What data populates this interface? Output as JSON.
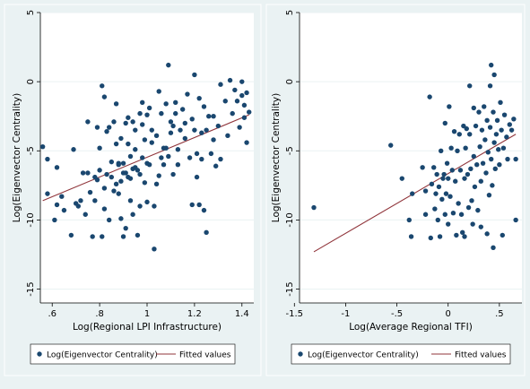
{
  "chart_data": [
    {
      "type": "scatter",
      "title": "",
      "xlabel": "Log(Regional LPI Infrastructure)",
      "ylabel": "Log(Eigenvector Centrality)",
      "xlim": [
        0.55,
        1.45
      ],
      "ylim": [
        -16,
        5
      ],
      "x_ticks": [
        0.6,
        0.8,
        1.0,
        1.2,
        1.4
      ],
      "x_tick_labels": [
        ".6",
        ".8",
        "1",
        "1.2",
        "1.4"
      ],
      "y_ticks": [
        5,
        0,
        -5,
        -10,
        -15
      ],
      "y_tick_labels": [
        "5",
        "0",
        "-5",
        "-10",
        "-15"
      ],
      "grid": true,
      "legend_position": "bottom",
      "colors": {
        "points": "#1a476f",
        "fit": "#90353b"
      },
      "series": [
        {
          "name": "Log(Eigenvector Centrality)",
          "kind": "scatter",
          "points": [
            [
              0.56,
              -4.7
            ],
            [
              0.58,
              -5.6
            ],
            [
              0.58,
              -8.1
            ],
            [
              0.61,
              -10.0
            ],
            [
              0.62,
              -6.2
            ],
            [
              0.62,
              -8.9
            ],
            [
              0.64,
              -8.3
            ],
            [
              0.65,
              -9.3
            ],
            [
              0.68,
              -11.1
            ],
            [
              0.69,
              -4.9
            ],
            [
              0.7,
              -8.8
            ],
            [
              0.71,
              -9.0
            ],
            [
              0.72,
              -8.6
            ],
            [
              0.73,
              -6.6
            ],
            [
              0.74,
              -9.6
            ],
            [
              0.75,
              -2.9
            ],
            [
              0.75,
              -6.6
            ],
            [
              0.76,
              -8.0
            ],
            [
              0.77,
              -11.2
            ],
            [
              0.78,
              -6.9
            ],
            [
              0.78,
              -8.6
            ],
            [
              0.79,
              -3.3
            ],
            [
              0.79,
              -7.1
            ],
            [
              0.8,
              -4.8
            ],
            [
              0.8,
              -6.4
            ],
            [
              0.81,
              -0.3
            ],
            [
              0.81,
              -11.2
            ],
            [
              0.82,
              -1.1
            ],
            [
              0.82,
              -7.7
            ],
            [
              0.82,
              -9.2
            ],
            [
              0.83,
              -3.6
            ],
            [
              0.83,
              -6.7
            ],
            [
              0.84,
              -10.0
            ],
            [
              0.84,
              -3.3
            ],
            [
              0.85,
              -5.8
            ],
            [
              0.85,
              -6.9
            ],
            [
              0.86,
              -2.9
            ],
            [
              0.86,
              -7.9
            ],
            [
              0.87,
              -1.6
            ],
            [
              0.87,
              -4.5
            ],
            [
              0.87,
              -7.4
            ],
            [
              0.88,
              -6.0
            ],
            [
              0.88,
              -5.9
            ],
            [
              0.88,
              -8.1
            ],
            [
              0.89,
              -4.1
            ],
            [
              0.89,
              -7.2
            ],
            [
              0.89,
              -9.9
            ],
            [
              0.9,
              -11.2
            ],
            [
              0.9,
              -5.9
            ],
            [
              0.9,
              -6.6
            ],
            [
              0.91,
              -3.0
            ],
            [
              0.91,
              -6.6
            ],
            [
              0.91,
              -10.6
            ],
            [
              0.92,
              -2.6
            ],
            [
              0.92,
              -4.5
            ],
            [
              0.92,
              -6.9
            ],
            [
              0.93,
              -5.4
            ],
            [
              0.93,
              -8.6
            ],
            [
              0.93,
              -7.0
            ],
            [
              0.94,
              -2.9
            ],
            [
              0.94,
              -6.3
            ],
            [
              0.94,
              -9.6
            ],
            [
              0.95,
              -3.5
            ],
            [
              0.95,
              -6.2
            ],
            [
              0.95,
              -4.9
            ],
            [
              0.96,
              -11.1
            ],
            [
              0.96,
              -6.4
            ],
            [
              0.97,
              -2.3
            ],
            [
              0.97,
              -6.7
            ],
            [
              0.97,
              -9.0
            ],
            [
              0.98,
              -3.1
            ],
            [
              0.98,
              -5.5
            ],
            [
              0.98,
              -1.5
            ],
            [
              0.99,
              -4.2
            ],
            [
              0.99,
              -7.3
            ],
            [
              1.0,
              -2.4
            ],
            [
              1.0,
              -5.9
            ],
            [
              1.0,
              -8.7
            ],
            [
              1.01,
              -1.9
            ],
            [
              1.01,
              -6.0
            ],
            [
              1.02,
              -3.5
            ],
            [
              1.02,
              -4.4
            ],
            [
              1.03,
              -12.1
            ],
            [
              1.03,
              -9.0
            ],
            [
              1.04,
              -7.4
            ],
            [
              1.04,
              -3.9
            ],
            [
              1.05,
              -0.7
            ],
            [
              1.05,
              -6.8
            ],
            [
              1.06,
              -5.5
            ],
            [
              1.06,
              -2.3
            ],
            [
              1.07,
              -4.8
            ],
            [
              1.07,
              -6.0
            ],
            [
              1.08,
              -1.6
            ],
            [
              1.08,
              -4.8
            ],
            [
              1.09,
              1.2
            ],
            [
              1.09,
              -5.4
            ],
            [
              1.1,
              -2.9
            ],
            [
              1.1,
              -3.7
            ],
            [
              1.11,
              -6.7
            ],
            [
              1.11,
              -3.2
            ],
            [
              1.12,
              -2.3
            ],
            [
              1.12,
              -1.5
            ],
            [
              1.13,
              -4.9
            ],
            [
              1.13,
              -6.0
            ],
            [
              1.14,
              -3.5
            ],
            [
              1.15,
              -2.0
            ],
            [
              1.16,
              -3.0
            ],
            [
              1.16,
              -4.1
            ],
            [
              1.17,
              -0.9
            ],
            [
              1.18,
              -5.5
            ],
            [
              1.19,
              -2.7
            ],
            [
              1.19,
              -8.9
            ],
            [
              1.2,
              0.5
            ],
            [
              1.2,
              -3.5
            ],
            [
              1.21,
              -5.2
            ],
            [
              1.21,
              -6.9
            ],
            [
              1.22,
              -8.9
            ],
            [
              1.22,
              -1.2
            ],
            [
              1.23,
              -3.7
            ],
            [
              1.23,
              -5.6
            ],
            [
              1.24,
              -9.3
            ],
            [
              1.24,
              -1.8
            ],
            [
              1.25,
              -3.5
            ],
            [
              1.25,
              -10.9
            ],
            [
              1.26,
              -2.5
            ],
            [
              1.27,
              -5.2
            ],
            [
              1.28,
              -4.2
            ],
            [
              1.28,
              -2.5
            ],
            [
              1.29,
              -6.1
            ],
            [
              1.3,
              -3.2
            ],
            [
              1.31,
              -0.2
            ],
            [
              1.31,
              -5.6
            ],
            [
              1.33,
              -1.4
            ],
            [
              1.34,
              -3.9
            ],
            [
              1.35,
              0.1
            ],
            [
              1.36,
              -2.3
            ],
            [
              1.37,
              -0.6
            ],
            [
              1.38,
              -1.4
            ],
            [
              1.39,
              -3.3
            ],
            [
              1.4,
              0.0
            ],
            [
              1.4,
              -1.0
            ],
            [
              1.41,
              -2.6
            ],
            [
              1.41,
              -1.7
            ],
            [
              1.42,
              -0.8
            ],
            [
              1.42,
              -4.4
            ],
            [
              1.43,
              -2.2
            ]
          ]
        },
        {
          "name": "Fitted values",
          "kind": "line",
          "points": [
            [
              0.56,
              -8.6
            ],
            [
              1.43,
              -2.4
            ]
          ]
        }
      ]
    },
    {
      "type": "scatter",
      "title": "",
      "xlabel": "Log(Average Regional TFI)",
      "ylabel": "Log(Eigenvector Centrality)",
      "xlim": [
        -1.45,
        0.72
      ],
      "ylim": [
        -16,
        5
      ],
      "x_ticks": [
        -1.5,
        -1.0,
        -0.5,
        0.0,
        0.5
      ],
      "x_tick_labels": [
        "-1.5",
        "-1",
        "-.5",
        "0",
        ".5"
      ],
      "y_ticks": [
        5,
        0,
        -5,
        -10,
        -15
      ],
      "y_tick_labels": [
        "5",
        "0",
        "-5",
        "-10",
        "-15"
      ],
      "grid": true,
      "legend_position": "bottom",
      "colors": {
        "points": "#1a476f",
        "fit": "#90353b"
      },
      "series": [
        {
          "name": "Log(Eigenvector Centrality)",
          "kind": "scatter",
          "points": [
            [
              -1.31,
              -9.1
            ],
            [
              -0.56,
              -4.6
            ],
            [
              -0.45,
              -7.0
            ],
            [
              -0.38,
              -10.0
            ],
            [
              -0.36,
              -11.2
            ],
            [
              -0.35,
              -8.1
            ],
            [
              -0.25,
              -6.2
            ],
            [
              -0.22,
              -9.6
            ],
            [
              -0.22,
              -7.9
            ],
            [
              -0.18,
              -1.1
            ],
            [
              -0.17,
              -11.3
            ],
            [
              -0.16,
              -7.4
            ],
            [
              -0.14,
              -6.2
            ],
            [
              -0.13,
              -9.2
            ],
            [
              -0.12,
              -8.1
            ],
            [
              -0.11,
              -6.7
            ],
            [
              -0.1,
              -10.0
            ],
            [
              -0.09,
              -7.6
            ],
            [
              -0.08,
              -11.2
            ],
            [
              -0.07,
              -5.0
            ],
            [
              -0.06,
              -8.5
            ],
            [
              -0.05,
              -7.0
            ],
            [
              -0.04,
              -6.7
            ],
            [
              -0.03,
              -9.6
            ],
            [
              -0.03,
              -3.0
            ],
            [
              -0.02,
              -8.1
            ],
            [
              -0.01,
              -5.9
            ],
            [
              0.0,
              -7.0
            ],
            [
              0.0,
              -10.3
            ],
            [
              0.01,
              -1.8
            ],
            [
              0.02,
              -8.3
            ],
            [
              0.03,
              -4.8
            ],
            [
              0.04,
              -6.4
            ],
            [
              0.05,
              -9.5
            ],
            [
              0.06,
              -3.6
            ],
            [
              0.07,
              -7.2
            ],
            [
              0.08,
              -11.1
            ],
            [
              0.09,
              -5.0
            ],
            [
              0.1,
              -8.8
            ],
            [
              0.11,
              -3.8
            ],
            [
              0.12,
              -6.4
            ],
            [
              0.13,
              -9.6
            ],
            [
              0.14,
              -10.9
            ],
            [
              0.15,
              -3.2
            ],
            [
              0.16,
              -7.0
            ],
            [
              0.16,
              -11.2
            ],
            [
              0.17,
              -4.8
            ],
            [
              0.18,
              -3.4
            ],
            [
              0.19,
              -6.7
            ],
            [
              0.2,
              -9.1
            ],
            [
              0.21,
              -0.3
            ],
            [
              0.21,
              -3.8
            ],
            [
              0.22,
              -6.3
            ],
            [
              0.23,
              -8.6
            ],
            [
              0.24,
              -10.3
            ],
            [
              0.25,
              -1.9
            ],
            [
              0.25,
              -5.4
            ],
            [
              0.26,
              -7.6
            ],
            [
              0.27,
              -3.2
            ],
            [
              0.28,
              -6.0
            ],
            [
              0.29,
              -9.3
            ],
            [
              0.3,
              -2.2
            ],
            [
              0.31,
              -4.7
            ],
            [
              0.32,
              -7.2
            ],
            [
              0.32,
              -10.5
            ],
            [
              0.33,
              -3.5
            ],
            [
              0.34,
              -5.9
            ],
            [
              0.35,
              -1.8
            ],
            [
              0.36,
              -4.2
            ],
            [
              0.37,
              -6.6
            ],
            [
              0.38,
              -11.0
            ],
            [
              0.38,
              -2.8
            ],
            [
              0.39,
              -5.1
            ],
            [
              0.4,
              -8.2
            ],
            [
              0.41,
              -0.3
            ],
            [
              0.41,
              -3.3
            ],
            [
              0.42,
              1.2
            ],
            [
              0.42,
              -5.6
            ],
            [
              0.43,
              -7.5
            ],
            [
              0.44,
              -2.2
            ],
            [
              0.44,
              -12.0
            ],
            [
              0.45,
              0.5
            ],
            [
              0.45,
              -4.4
            ],
            [
              0.46,
              -6.3
            ],
            [
              0.47,
              -3.8
            ],
            [
              0.48,
              -2.8
            ],
            [
              0.49,
              -4.9
            ],
            [
              0.5,
              -6.0
            ],
            [
              0.51,
              -1.5
            ],
            [
              0.52,
              -3.5
            ],
            [
              0.53,
              -11.1
            ],
            [
              0.54,
              -4.8
            ],
            [
              0.55,
              -2.4
            ],
            [
              0.57,
              -4.0
            ],
            [
              0.58,
              -5.6
            ],
            [
              0.6,
              -3.1
            ],
            [
              0.62,
              -3.5
            ],
            [
              0.64,
              -2.7
            ],
            [
              0.66,
              -5.6
            ],
            [
              0.66,
              -10.0
            ]
          ]
        },
        {
          "name": "Fitted values",
          "kind": "line",
          "points": [
            [
              -1.31,
              -12.3
            ],
            [
              0.66,
              -3.8
            ]
          ]
        }
      ]
    }
  ]
}
